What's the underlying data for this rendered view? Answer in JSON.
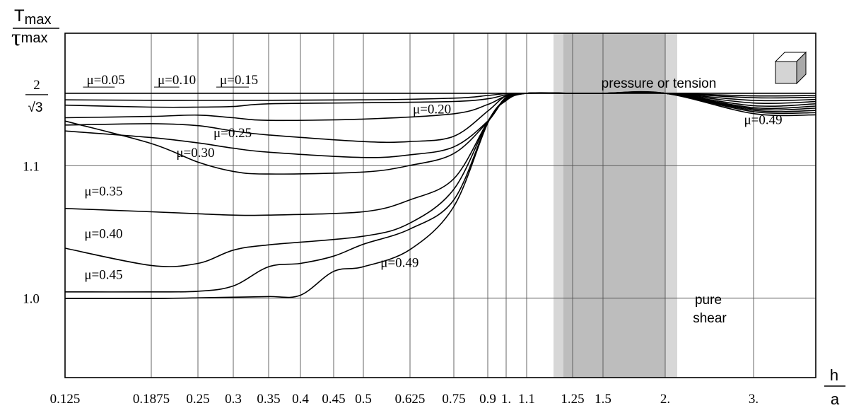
{
  "chart_data": {
    "type": "line",
    "y_axis": {
      "label_top": "T",
      "label_top_sub": "max",
      "label_bottom": "τ",
      "label_bottom_sub": "max",
      "ticks": [
        {
          "value": 1.0,
          "label": "1.0"
        },
        {
          "value": 1.1,
          "label": "1.1"
        },
        {
          "value": 1.1547,
          "label_num": "2",
          "label_den": "√3"
        }
      ],
      "range": [
        0.94,
        1.2
      ]
    },
    "x_axis": {
      "label_num": "h",
      "label_den": "a",
      "tick_labels": [
        "0.125",
        "0.1875",
        "0.25",
        "0.3",
        "0.35",
        "0.4",
        "0.45",
        "0.5",
        "0.625",
        "0.75",
        "0.9",
        "1.",
        "1.1",
        "1.25",
        "1.5",
        "2.",
        "3."
      ],
      "tick_values": [
        0.125,
        0.1875,
        0.25,
        0.3,
        0.35,
        0.4,
        0.45,
        0.5,
        0.625,
        0.75,
        0.9,
        1.0,
        1.1,
        1.25,
        1.5,
        2.0,
        3.0
      ],
      "range": [
        0.125,
        4.0
      ]
    },
    "shaded_bands": [
      {
        "from": 1.15,
        "to": 2.2,
        "shade": "light"
      },
      {
        "from": 1.2,
        "to": 2.0,
        "shade": "dark"
      }
    ],
    "annotations": {
      "pressure": "pressure or tension",
      "pure_1": "pure",
      "pure_2": "shear"
    },
    "grid": true,
    "series": [
      {
        "name": "μ=0.05",
        "x": [
          0.125,
          0.25,
          0.5,
          0.75,
          0.9,
          1.0,
          1.1,
          1.25,
          1.5,
          2.0,
          3.0,
          4.0
        ],
        "y": [
          1.1547,
          1.1547,
          1.1547,
          1.1547,
          1.1547,
          1.1547,
          1.1547,
          1.1547,
          1.1547,
          1.1547,
          1.1547,
          1.1547
        ]
      },
      {
        "name": "μ=0.10",
        "x": [
          0.125,
          0.25,
          0.5,
          0.75,
          0.9,
          1.0,
          1.1,
          1.25,
          1.5,
          2.0,
          3.0,
          4.0
        ],
        "y": [
          1.1497,
          1.1493,
          1.1497,
          1.151,
          1.153,
          1.1545,
          1.1547,
          1.1547,
          1.1547,
          1.1547,
          1.1527,
          1.153
        ]
      },
      {
        "name": "μ=0.15",
        "x": [
          0.125,
          0.1875,
          0.25,
          0.3,
          0.35,
          0.5,
          0.75,
          0.9,
          1.0,
          1.1,
          1.25,
          1.5,
          2.0,
          3.0,
          4.0
        ],
        "y": [
          1.1457,
          1.1442,
          1.1442,
          1.1447,
          1.1467,
          1.1475,
          1.1485,
          1.1505,
          1.1535,
          1.1547,
          1.1547,
          1.1547,
          1.1547,
          1.1513,
          1.1517
        ]
      },
      {
        "name": "μ=0.20",
        "x": [
          0.125,
          0.1875,
          0.25,
          0.3,
          0.35,
          0.5,
          0.75,
          0.9,
          1.0,
          1.1,
          1.25,
          1.5,
          2.0,
          3.0,
          4.0
        ],
        "y": [
          1.1362,
          1.1372,
          1.1382,
          1.1362,
          1.1342,
          1.1352,
          1.1392,
          1.1462,
          1.1527,
          1.1547,
          1.1547,
          1.1547,
          1.1547,
          1.1493,
          1.15
        ]
      },
      {
        "name": "μ=0.25",
        "x": [
          0.125,
          0.1875,
          0.25,
          0.3,
          0.35,
          0.5,
          0.625,
          0.75,
          0.9,
          1.0,
          1.1,
          1.25,
          1.5,
          2.0,
          3.0,
          4.0
        ],
        "y": [
          1.1307,
          1.1317,
          1.1302,
          1.1262,
          1.1232,
          1.1182,
          1.1182,
          1.1222,
          1.1412,
          1.1527,
          1.1547,
          1.1547,
          1.1547,
          1.1547,
          1.1473,
          1.1484
        ]
      },
      {
        "name": "μ=0.30",
        "x": [
          0.125,
          0.1875,
          0.25,
          0.3,
          0.35,
          0.5,
          0.625,
          0.75,
          0.9,
          1.0,
          1.1,
          1.25,
          1.5,
          2.0,
          3.0,
          4.0
        ],
        "y": [
          1.1262,
          1.1212,
          1.1172,
          1.1132,
          1.1102,
          1.1062,
          1.1082,
          1.1142,
          1.1337,
          1.1517,
          1.1547,
          1.1547,
          1.1547,
          1.1547,
          1.1453,
          1.1467
        ]
      },
      {
        "name": "",
        "x": [
          0.125,
          0.1875,
          0.25,
          0.3,
          0.35,
          0.5,
          0.625,
          0.75,
          0.9,
          1.0,
          1.1,
          1.25,
          1.5,
          2.0,
          3.0,
          4.0
        ],
        "y": [
          1.1337,
          1.1167,
          1.1027,
          1.0957,
          1.0937,
          1.0952,
          1.1002,
          1.1092,
          1.1332,
          1.1512,
          1.1547,
          1.1547,
          1.1547,
          1.1547,
          1.1438,
          1.145
        ]
      },
      {
        "name": "μ=0.35",
        "x": [
          0.125,
          0.1875,
          0.25,
          0.3,
          0.35,
          0.5,
          0.625,
          0.75,
          0.9,
          1.0,
          1.1,
          1.25,
          1.5,
          2.0,
          3.0,
          4.0
        ],
        "y": [
          1.0677,
          1.0652,
          1.0637,
          1.0627,
          1.0627,
          1.0652,
          1.0742,
          1.0902,
          1.1332,
          1.1507,
          1.1547,
          1.1547,
          1.1547,
          1.1547,
          1.1428,
          1.1434
        ]
      },
      {
        "name": "μ=0.40",
        "x": [
          0.125,
          0.1875,
          0.25,
          0.3,
          0.35,
          0.5,
          0.625,
          0.75,
          0.9,
          1.0,
          1.1,
          1.25,
          1.5,
          2.0,
          3.0,
          4.0
        ],
        "y": [
          1.0377,
          1.0247,
          1.0262,
          1.0362,
          1.0402,
          1.0467,
          1.0567,
          1.0822,
          1.1332,
          1.1502,
          1.1547,
          1.1547,
          1.1547,
          1.1547,
          1.1418,
          1.1417
        ]
      },
      {
        "name": "μ=0.45",
        "x": [
          0.125,
          0.1875,
          0.25,
          0.3,
          0.35,
          0.4,
          0.45,
          0.5,
          0.625,
          0.75,
          0.9,
          1.0,
          1.1,
          1.25,
          1.5,
          2.0,
          3.0,
          4.0
        ],
        "y": [
          1.0047,
          1.0047,
          1.0052,
          1.0092,
          1.0237,
          1.0262,
          1.0317,
          1.0407,
          1.0522,
          1.0742,
          1.1327,
          1.1497,
          1.1547,
          1.1547,
          1.1547,
          1.1547,
          1.1408,
          1.14
        ]
      },
      {
        "name": "μ=0.49",
        "x": [
          0.125,
          0.1875,
          0.25,
          0.3,
          0.35,
          0.4,
          0.45,
          0.5,
          0.625,
          0.75,
          0.9,
          1.0,
          1.1,
          1.25,
          1.5,
          2.0,
          3.0,
          4.0
        ],
        "y": [
          0.9997,
          0.9997,
          1.0002,
          1.0007,
          1.0012,
          1.0022,
          1.0202,
          1.0237,
          1.0367,
          1.0692,
          1.1322,
          1.1492,
          1.1547,
          1.1547,
          1.1547,
          1.1547,
          1.1393,
          1.1384
        ]
      }
    ],
    "series_labels": [
      {
        "text": "μ=0.05",
        "x": 0.1406,
        "y": 1.1615,
        "underline_to": 0.161
      },
      {
        "text": "μ=0.10",
        "x": 0.196,
        "y": 1.1615,
        "underline_to": 0.225
      },
      {
        "text": "μ=0.15",
        "x": 0.281,
        "y": 1.1615,
        "underline_to": 0.322
      },
      {
        "text": "μ=0.20",
        "x": 0.633,
        "y": 1.1395
      },
      {
        "text": "μ=0.25",
        "x": 0.272,
        "y": 1.1215
      },
      {
        "text": "μ=0.30",
        "x": 0.221,
        "y": 1.1065
      },
      {
        "text": "μ=0.35",
        "x": 0.139,
        "y": 1.0775
      },
      {
        "text": "μ=0.40",
        "x": 0.139,
        "y": 1.0455
      },
      {
        "text": "μ=0.45",
        "x": 0.139,
        "y": 1.0145
      },
      {
        "text": "μ=0.49",
        "x": 0.546,
        "y": 1.0235
      },
      {
        "text": "μ=0.49",
        "x": 2.9,
        "y": 1.1315
      }
    ]
  }
}
